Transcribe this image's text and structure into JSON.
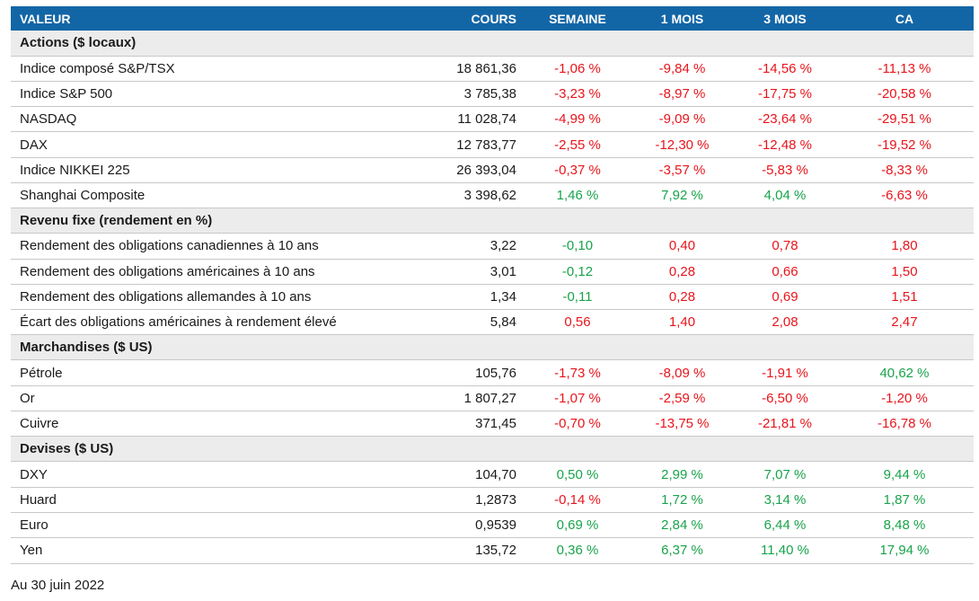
{
  "headers": {
    "name": "VALEUR",
    "cours": "COURS",
    "semaine": "SEMAINE",
    "m1": "1 MOIS",
    "m3": "3 MOIS",
    "ca": "CA"
  },
  "colors": {
    "header_bg": "#1366a6",
    "negative": "#e8141b",
    "positive": "#18a34a",
    "section_bg": "#ececec"
  },
  "sections": [
    {
      "title": "Actions ($ locaux)",
      "rows": [
        {
          "name": "Indice composé S&P/TSX",
          "cours": "18 861,36",
          "semaine": "-1,06 %",
          "m1": "-9,84 %",
          "m3": "-14,56 %",
          "ca": "-11,13 %"
        },
        {
          "name": "Indice S&P 500",
          "cours": "3 785,38",
          "semaine": "-3,23 %",
          "m1": "-8,97 %",
          "m3": "-17,75 %",
          "ca": "-20,58 %"
        },
        {
          "name": "NASDAQ",
          "cours": "11 028,74",
          "semaine": "-4,99 %",
          "m1": "-9,09 %",
          "m3": "-23,64 %",
          "ca": "-29,51 %"
        },
        {
          "name": "DAX",
          "cours": "12 783,77",
          "semaine": "-2,55 %",
          "m1": "-12,30 %",
          "m3": "-12,48 %",
          "ca": "-19,52 %"
        },
        {
          "name": "Indice NIKKEI 225",
          "cours": "26 393,04",
          "semaine": "-0,37 %",
          "m1": "-3,57 %",
          "m3": "-5,83 %",
          "ca": "-8,33 %"
        },
        {
          "name": "Shanghai Composite",
          "cours": "3 398,62",
          "semaine": "1,46 %",
          "m1": "7,92 %",
          "m3": "4,04 %",
          "ca": "-6,63 %"
        }
      ]
    },
    {
      "title": "Revenu fixe (rendement en %)",
      "rows": [
        {
          "name": "Rendement des obligations canadiennes à 10 ans",
          "cours": "3,22",
          "semaine": "-0,10",
          "m1": "0,40",
          "m3": "0,78",
          "ca": "1,80"
        },
        {
          "name": "Rendement des obligations américaines à 10 ans",
          "cours": "3,01",
          "semaine": "-0,12",
          "m1": "0,28",
          "m3": "0,66",
          "ca": "1,50"
        },
        {
          "name": "Rendement des obligations allemandes à 10 ans",
          "cours": "1,34",
          "semaine": "-0,11",
          "m1": "0,28",
          "m3": "0,69",
          "ca": "1,51"
        },
        {
          "name": "Écart des obligations américaines à rendement élevé",
          "cours": "5,84",
          "semaine": "0,56",
          "m1": "1,40",
          "m3": "2,08",
          "ca": "2,47"
        }
      ]
    },
    {
      "title": "Marchandises ($ US)",
      "rows": [
        {
          "name": "Pétrole",
          "cours": "105,76",
          "semaine": "-1,73 %",
          "m1": "-8,09 %",
          "m3": "-1,91 %",
          "ca": "40,62 %"
        },
        {
          "name": "Or",
          "cours": "1 807,27",
          "semaine": "-1,07 %",
          "m1": "-2,59 %",
          "m3": "-6,50 %",
          "ca": "-1,20 %"
        },
        {
          "name": "Cuivre",
          "cours": "371,45",
          "semaine": "-0,70 %",
          "m1": "-13,75 %",
          "m3": "-21,81 %",
          "ca": "-16,78 %"
        }
      ]
    },
    {
      "title": "Devises ($ US)",
      "rows": [
        {
          "name": "DXY",
          "cours": "104,70",
          "semaine": "0,50 %",
          "m1": "2,99 %",
          "m3": "7,07 %",
          "ca": "9,44 %"
        },
        {
          "name": "Huard",
          "cours": "1,2873",
          "semaine": "-0,14 %",
          "m1": "1,72 %",
          "m3": "3,14 %",
          "ca": "1,87 %"
        },
        {
          "name": "Euro",
          "cours": "0,9539",
          "semaine": "0,69 %",
          "m1": "2,84 %",
          "m3": "6,44 %",
          "ca": "8,48 %"
        },
        {
          "name": "Yen",
          "cours": "135,72",
          "semaine": "0,36 %",
          "m1": "6,37 %",
          "m3": "11,40 %",
          "ca": "17,94 %"
        }
      ]
    }
  ],
  "value_colors": {
    "rows": [
      [
        "neg",
        "neg",
        "neg",
        "neg"
      ],
      [
        "neg",
        "neg",
        "neg",
        "neg"
      ],
      [
        "neg",
        "neg",
        "neg",
        "neg"
      ],
      [
        "neg",
        "neg",
        "neg",
        "neg"
      ],
      [
        "neg",
        "neg",
        "neg",
        "neg"
      ],
      [
        "pos",
        "pos",
        "pos",
        "neg"
      ],
      [
        "pos",
        "neg",
        "neg",
        "neg"
      ],
      [
        "pos",
        "neg",
        "neg",
        "neg"
      ],
      [
        "pos",
        "neg",
        "neg",
        "neg"
      ],
      [
        "neg",
        "neg",
        "neg",
        "neg"
      ],
      [
        "neg",
        "neg",
        "neg",
        "pos"
      ],
      [
        "neg",
        "neg",
        "neg",
        "neg"
      ],
      [
        "neg",
        "neg",
        "neg",
        "neg"
      ],
      [
        "pos",
        "pos",
        "pos",
        "pos"
      ],
      [
        "neg",
        "pos",
        "pos",
        "pos"
      ],
      [
        "pos",
        "pos",
        "pos",
        "pos"
      ],
      [
        "pos",
        "pos",
        "pos",
        "pos"
      ]
    ]
  },
  "footnote": "Au 30 juin 2022"
}
